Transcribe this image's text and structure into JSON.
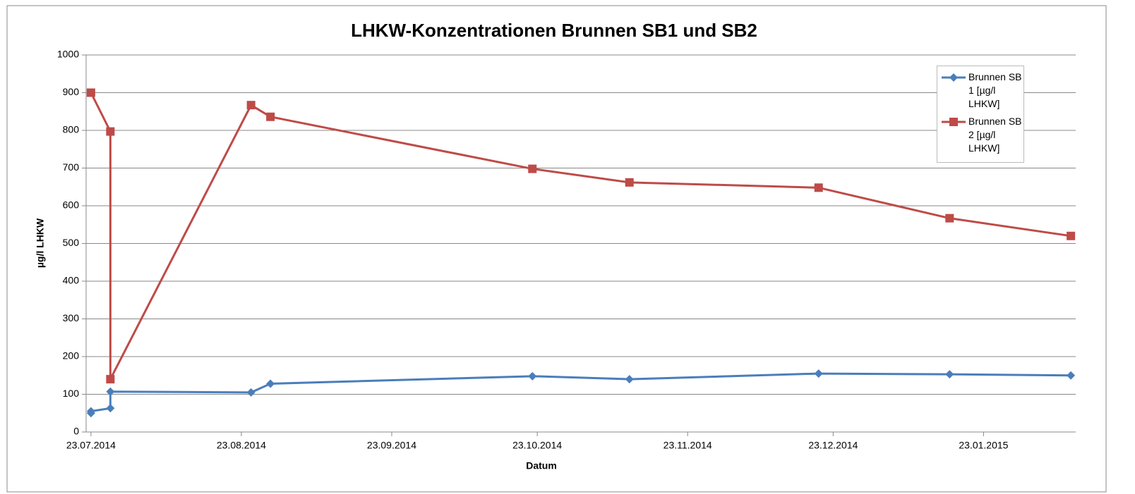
{
  "chart_data": {
    "type": "line",
    "title": "LHKW-Konzentrationen Brunnen SB1 und SB2",
    "x_label": "Datum",
    "y_label": "µg/l LHKW",
    "series": [
      {
        "name": "Brunnen SB 1 [µg/l LHKW]",
        "color": "#4a7ebb",
        "marker": "diamond",
        "x": [
          "23.07.2014",
          "23.07.2014",
          "27.07.2014",
          "27.07.2014",
          "25.08.2014",
          "29.08.2014",
          "22.10.2014",
          "11.11.2014",
          "20.12.2014",
          "16.01.2015",
          "10.02.2015"
        ],
        "values": [
          50,
          55,
          63,
          107,
          105,
          128,
          148,
          140,
          155,
          153,
          150
        ]
      },
      {
        "name": "Brunnen SB 2 [µg/l LHKW]",
        "color": "#be4b48",
        "marker": "square",
        "x": [
          "23.07.2014",
          "27.07.2014",
          "27.07.2014",
          "25.08.2014",
          "29.08.2014",
          "22.10.2014",
          "11.11.2014",
          "20.12.2014",
          "16.01.2015",
          "10.02.2015"
        ],
        "values": [
          900,
          797,
          140,
          867,
          836,
          698,
          662,
          648,
          567,
          520
        ]
      }
    ],
    "xlim": [
      "22.07.2014",
      "11.02.2015"
    ],
    "xticks": [
      "23.07.2014",
      "23.08.2014",
      "23.09.2014",
      "23.10.2014",
      "23.11.2014",
      "23.12.2014",
      "23.01.2015"
    ],
    "ylim": [
      0,
      1000
    ],
    "yticks": [
      0,
      100,
      200,
      300,
      400,
      500,
      600,
      700,
      800,
      900,
      1000
    ],
    "grid": true,
    "legend": "top-right"
  }
}
